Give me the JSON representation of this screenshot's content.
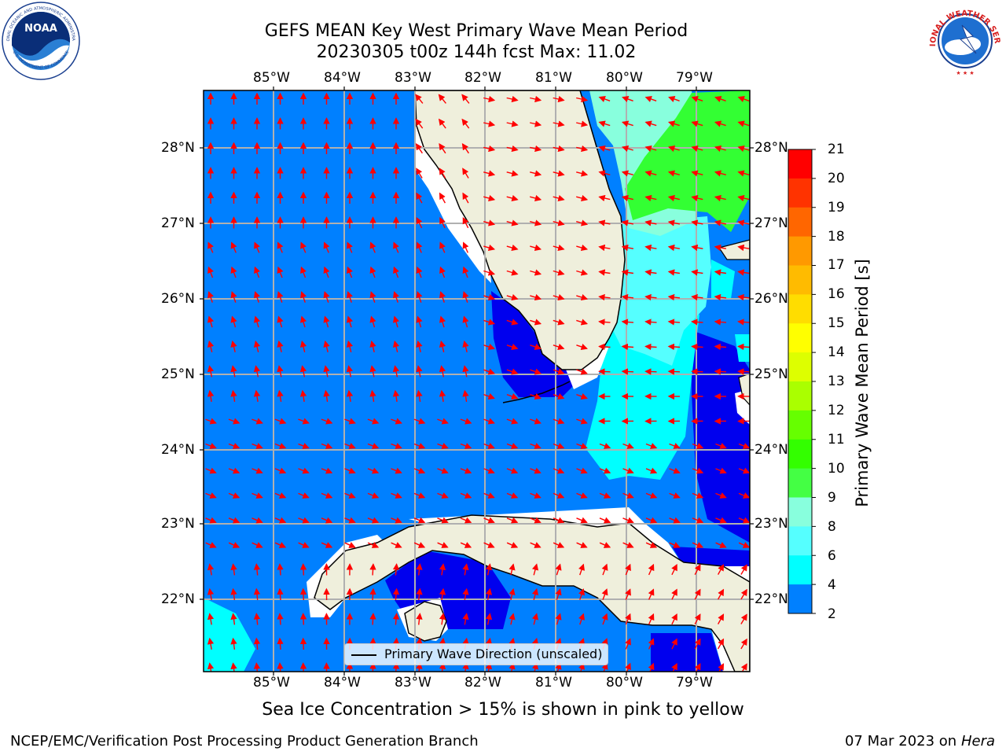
{
  "title": {
    "line1": "GEFS MEAN Key West Primary Wave Mean Period",
    "line2": "20230305 t00z 144h fcst   Max: 11.02"
  },
  "logos": {
    "left_icon": "noaa-logo",
    "left_text_top": "NATIONAL OCEANIC AND ATMOSPHERIC ADMINISTRATION",
    "left_text_bottom": "U.S. DEPARTMENT OF COMMERCE",
    "left_center": "NOAA",
    "right_icon": "nws-logo",
    "right_text": "NATIONAL WEATHER SERVICE"
  },
  "map": {
    "lon_labels": [
      "85°W",
      "84°W",
      "83°W",
      "82°W",
      "81°W",
      "80°W",
      "79°W"
    ],
    "lat_labels": [
      "28°N",
      "27°N",
      "26°N",
      "25°N",
      "24°N",
      "23°N",
      "22°N"
    ],
    "colors": {
      "water_4_6": "#0080ff",
      "water_2_4": "#0000ee",
      "water_6_8": "#00ffff",
      "water_8_9": "#55ffff",
      "water_9_10": "#88ffdd",
      "water_10_11": "#33ff33",
      "land": "#efefdc",
      "arrow": "#ff0000",
      "grid": "#b0b0b0"
    },
    "legend_label": "Primary Wave Direction (unscaled)"
  },
  "colorbar": {
    "title": "Primary Wave Mean Period [s]",
    "tick_labels": [
      "21",
      "20",
      "19",
      "18",
      "17",
      "16",
      "15",
      "14",
      "13",
      "12",
      "11",
      "10",
      "9",
      "8",
      "6",
      "4",
      "2"
    ],
    "colors": [
      "#ff0000",
      "#ff3300",
      "#ff6600",
      "#ff9900",
      "#ffbb00",
      "#ffdd00",
      "#ffff00",
      "#ddff00",
      "#aaff00",
      "#66ff00",
      "#33ff00",
      "#44ff44",
      "#88ffdd",
      "#55ffff",
      "#00ffff",
      "#0080ff",
      "#0000ff"
    ]
  },
  "footer": {
    "sea_ice_note": "Sea Ice Concentration > 15% is shown in pink to yellow",
    "left": "NCEP/EMC/Verification Post Processing Product Generation Branch",
    "date": "07 Mar 2023 on",
    "host": "Hera"
  }
}
